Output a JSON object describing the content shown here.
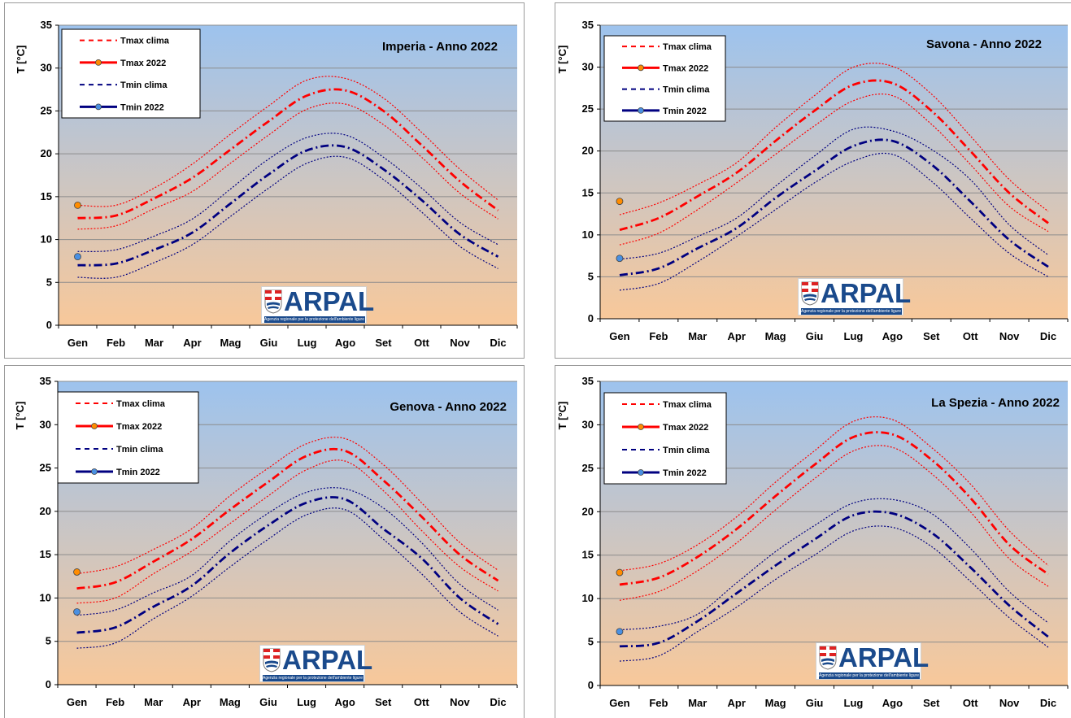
{
  "months": [
    "Gen",
    "Feb",
    "Mar",
    "Apr",
    "Mag",
    "Giu",
    "Lug",
    "Ago",
    "Set",
    "Ott",
    "Nov",
    "Dic"
  ],
  "ylabel": "T [°C]",
  "yticks": [
    "0",
    "5",
    "10",
    "15",
    "20",
    "25",
    "30",
    "35"
  ],
  "ylim": [
    0,
    35
  ],
  "legend": {
    "tmax_clima": "Tmax clima",
    "tmax_2022": "Tmax 2022",
    "tmin_clima": "Tmin clima",
    "tmin_2022": "Tmin 2022"
  },
  "colors": {
    "tmax": "#ff0000",
    "tmin": "#000080",
    "tmax_marker": "#ff8c00",
    "tmin_marker": "#4a90e2",
    "bg_top": "#9dc3ee",
    "bg_bottom": "#f8c89a"
  },
  "logo": {
    "name": "ARPAL",
    "tagline": "Agenzia regionale per la protezione dell'ambiente ligure"
  },
  "chart_data": [
    {
      "type": "line",
      "title": "Imperia - Anno 2022",
      "categories": [
        "Gen",
        "Feb",
        "Mar",
        "Apr",
        "Mag",
        "Giu",
        "Lug",
        "Ago",
        "Set",
        "Ott",
        "Nov",
        "Dic"
      ],
      "ylim": [
        0,
        35
      ],
      "series": [
        {
          "name": "Tmax clima",
          "values": [
            12.5,
            12.8,
            14.8,
            17.2,
            20.5,
            23.8,
            26.8,
            27.4,
            25.0,
            21.0,
            16.8,
            13.4
          ]
        },
        {
          "name": "Tmax clima",
          "role": "upper",
          "values": [
            14.0,
            14.0,
            16.0,
            18.8,
            22.3,
            25.6,
            28.6,
            28.8,
            26.5,
            22.5,
            18.2,
            14.6
          ]
        },
        {
          "name": "Tmax clima",
          "role": "lower",
          "values": [
            11.2,
            11.6,
            13.6,
            15.6,
            18.9,
            22.2,
            25.2,
            25.8,
            23.4,
            19.6,
            15.4,
            12.4
          ]
        },
        {
          "name": "Tmax 2022",
          "values": [
            14.0,
            null,
            null,
            null,
            null,
            null,
            null,
            null,
            null,
            null,
            null,
            null
          ]
        },
        {
          "name": "Tmin clima",
          "values": [
            7.0,
            7.2,
            8.8,
            10.8,
            14.2,
            17.6,
            20.4,
            20.8,
            18.2,
            14.6,
            10.6,
            8.0
          ]
        },
        {
          "name": "Tmin clima",
          "role": "upper",
          "values": [
            8.6,
            8.8,
            10.4,
            12.4,
            15.9,
            19.4,
            21.9,
            22.2,
            19.6,
            16.0,
            12.0,
            9.4
          ]
        },
        {
          "name": "Tmin clima",
          "role": "lower",
          "values": [
            5.6,
            5.6,
            7.3,
            9.4,
            12.7,
            16.0,
            18.9,
            19.6,
            17.0,
            13.2,
            9.2,
            6.6
          ]
        },
        {
          "name": "Tmin 2022",
          "values": [
            8.0,
            null,
            null,
            null,
            null,
            null,
            null,
            null,
            null,
            null,
            null,
            null
          ]
        }
      ]
    },
    {
      "type": "line",
      "title": "Savona - Anno 2022",
      "categories": [
        "Gen",
        "Feb",
        "Mar",
        "Apr",
        "Mag",
        "Giu",
        "Lug",
        "Ago",
        "Set",
        "Ott",
        "Nov",
        "Dic"
      ],
      "ylim": [
        0,
        35
      ],
      "series": [
        {
          "name": "Tmax clima",
          "values": [
            10.6,
            12.0,
            14.6,
            17.4,
            21.2,
            24.8,
            27.9,
            28.1,
            24.8,
            20.0,
            15.0,
            11.4
          ]
        },
        {
          "name": "Tmax clima",
          "role": "upper",
          "values": [
            12.4,
            13.8,
            16.0,
            18.6,
            22.8,
            26.6,
            30.0,
            30.1,
            26.8,
            21.8,
            16.6,
            12.8
          ]
        },
        {
          "name": "Tmax clima",
          "role": "lower",
          "values": [
            8.8,
            10.2,
            13.0,
            16.2,
            19.6,
            23.0,
            26.0,
            26.6,
            23.2,
            18.4,
            13.4,
            10.4
          ]
        },
        {
          "name": "Tmax 2022",
          "values": [
            14.0,
            null,
            null,
            null,
            null,
            null,
            null,
            null,
            null,
            null,
            null,
            null
          ]
        },
        {
          "name": "Tmin clima",
          "values": [
            5.2,
            6.0,
            8.4,
            10.8,
            14.4,
            17.6,
            20.6,
            21.2,
            18.4,
            14.0,
            9.4,
            6.2
          ]
        },
        {
          "name": "Tmin clima",
          "role": "upper",
          "values": [
            7.1,
            7.8,
            9.8,
            12.0,
            15.8,
            19.4,
            22.6,
            22.4,
            20.2,
            16.6,
            11.2,
            7.6
          ]
        },
        {
          "name": "Tmin clima",
          "role": "lower",
          "values": [
            3.4,
            4.2,
            6.8,
            9.8,
            13.0,
            16.2,
            18.8,
            19.6,
            16.4,
            12.0,
            7.8,
            5.0
          ]
        },
        {
          "name": "Tmin 2022",
          "values": [
            7.2,
            null,
            null,
            null,
            null,
            null,
            null,
            null,
            null,
            null,
            null,
            null
          ]
        }
      ]
    },
    {
      "type": "line",
      "title": "Genova - Anno 2022",
      "categories": [
        "Gen",
        "Feb",
        "Mar",
        "Apr",
        "Mag",
        "Giu",
        "Lug",
        "Ago",
        "Set",
        "Ott",
        "Nov",
        "Dic"
      ],
      "ylim": [
        0,
        35
      ],
      "series": [
        {
          "name": "Tmax clima",
          "values": [
            11.1,
            11.8,
            14.2,
            16.8,
            20.2,
            23.4,
            26.4,
            27.0,
            23.6,
            19.4,
            15.0,
            12.0
          ]
        },
        {
          "name": "Tmax clima",
          "role": "upper",
          "values": [
            12.8,
            13.6,
            15.6,
            18.0,
            21.8,
            25.0,
            27.8,
            28.4,
            25.4,
            21.0,
            16.4,
            13.2
          ]
        },
        {
          "name": "Tmax clima",
          "role": "lower",
          "values": [
            9.4,
            10.0,
            12.8,
            15.4,
            18.6,
            21.8,
            24.8,
            25.8,
            22.4,
            17.8,
            13.6,
            10.8
          ]
        },
        {
          "name": "Tmax 2022",
          "values": [
            13.0,
            null,
            null,
            null,
            null,
            null,
            null,
            null,
            null,
            null,
            null,
            null
          ]
        },
        {
          "name": "Tmin clima",
          "values": [
            6.0,
            6.6,
            9.0,
            11.4,
            15.2,
            18.4,
            21.0,
            21.4,
            18.0,
            14.6,
            10.0,
            7.0
          ]
        },
        {
          "name": "Tmin clima",
          "role": "upper",
          "values": [
            8.0,
            8.6,
            10.6,
            12.6,
            16.6,
            19.8,
            22.2,
            22.6,
            20.4,
            16.4,
            11.6,
            8.6
          ]
        },
        {
          "name": "Tmin clima",
          "role": "lower",
          "values": [
            4.2,
            4.8,
            7.6,
            10.2,
            13.6,
            16.8,
            19.6,
            20.2,
            16.8,
            12.8,
            8.4,
            5.6
          ]
        },
        {
          "name": "Tmin 2022",
          "values": [
            8.4,
            null,
            null,
            null,
            null,
            null,
            null,
            null,
            null,
            null,
            null,
            null
          ]
        }
      ]
    },
    {
      "type": "line",
      "title": "La Spezia - Anno 2022",
      "categories": [
        "Gen",
        "Feb",
        "Mar",
        "Apr",
        "Mag",
        "Giu",
        "Lug",
        "Ago",
        "Set",
        "Ott",
        "Nov",
        "Dic"
      ],
      "ylim": [
        0,
        35
      ],
      "series": [
        {
          "name": "Tmax clima",
          "values": [
            11.6,
            12.4,
            14.8,
            18.0,
            21.8,
            25.4,
            28.6,
            28.9,
            26.0,
            21.6,
            16.2,
            12.8
          ]
        },
        {
          "name": "Tmax clima",
          "role": "upper",
          "values": [
            13.2,
            14.0,
            16.2,
            19.4,
            23.4,
            27.0,
            30.4,
            30.6,
            27.4,
            23.2,
            17.8,
            13.8
          ]
        },
        {
          "name": "Tmax clima",
          "role": "lower",
          "values": [
            9.8,
            10.8,
            13.2,
            16.4,
            20.2,
            23.8,
            27.0,
            27.4,
            24.4,
            20.0,
            14.6,
            11.4
          ]
        },
        {
          "name": "Tmax 2022",
          "values": [
            13.0,
            null,
            null,
            null,
            null,
            null,
            null,
            null,
            null,
            null,
            null,
            null
          ]
        },
        {
          "name": "Tmin clima",
          "values": [
            4.5,
            4.9,
            7.4,
            10.6,
            13.8,
            16.8,
            19.6,
            19.8,
            17.6,
            13.6,
            9.2,
            5.6
          ]
        },
        {
          "name": "Tmin clima",
          "role": "upper",
          "values": [
            6.4,
            6.8,
            8.2,
            11.8,
            15.4,
            18.4,
            21.0,
            21.4,
            19.8,
            15.8,
            10.8,
            7.2
          ]
        },
        {
          "name": "Tmin clima",
          "role": "lower",
          "values": [
            2.8,
            3.4,
            6.2,
            9.0,
            12.2,
            15.0,
            17.8,
            18.2,
            16.0,
            12.0,
            7.8,
            4.4
          ]
        },
        {
          "name": "Tmin 2022",
          "values": [
            6.2,
            null,
            null,
            null,
            null,
            null,
            null,
            null,
            null,
            null,
            null,
            null
          ]
        }
      ]
    }
  ]
}
